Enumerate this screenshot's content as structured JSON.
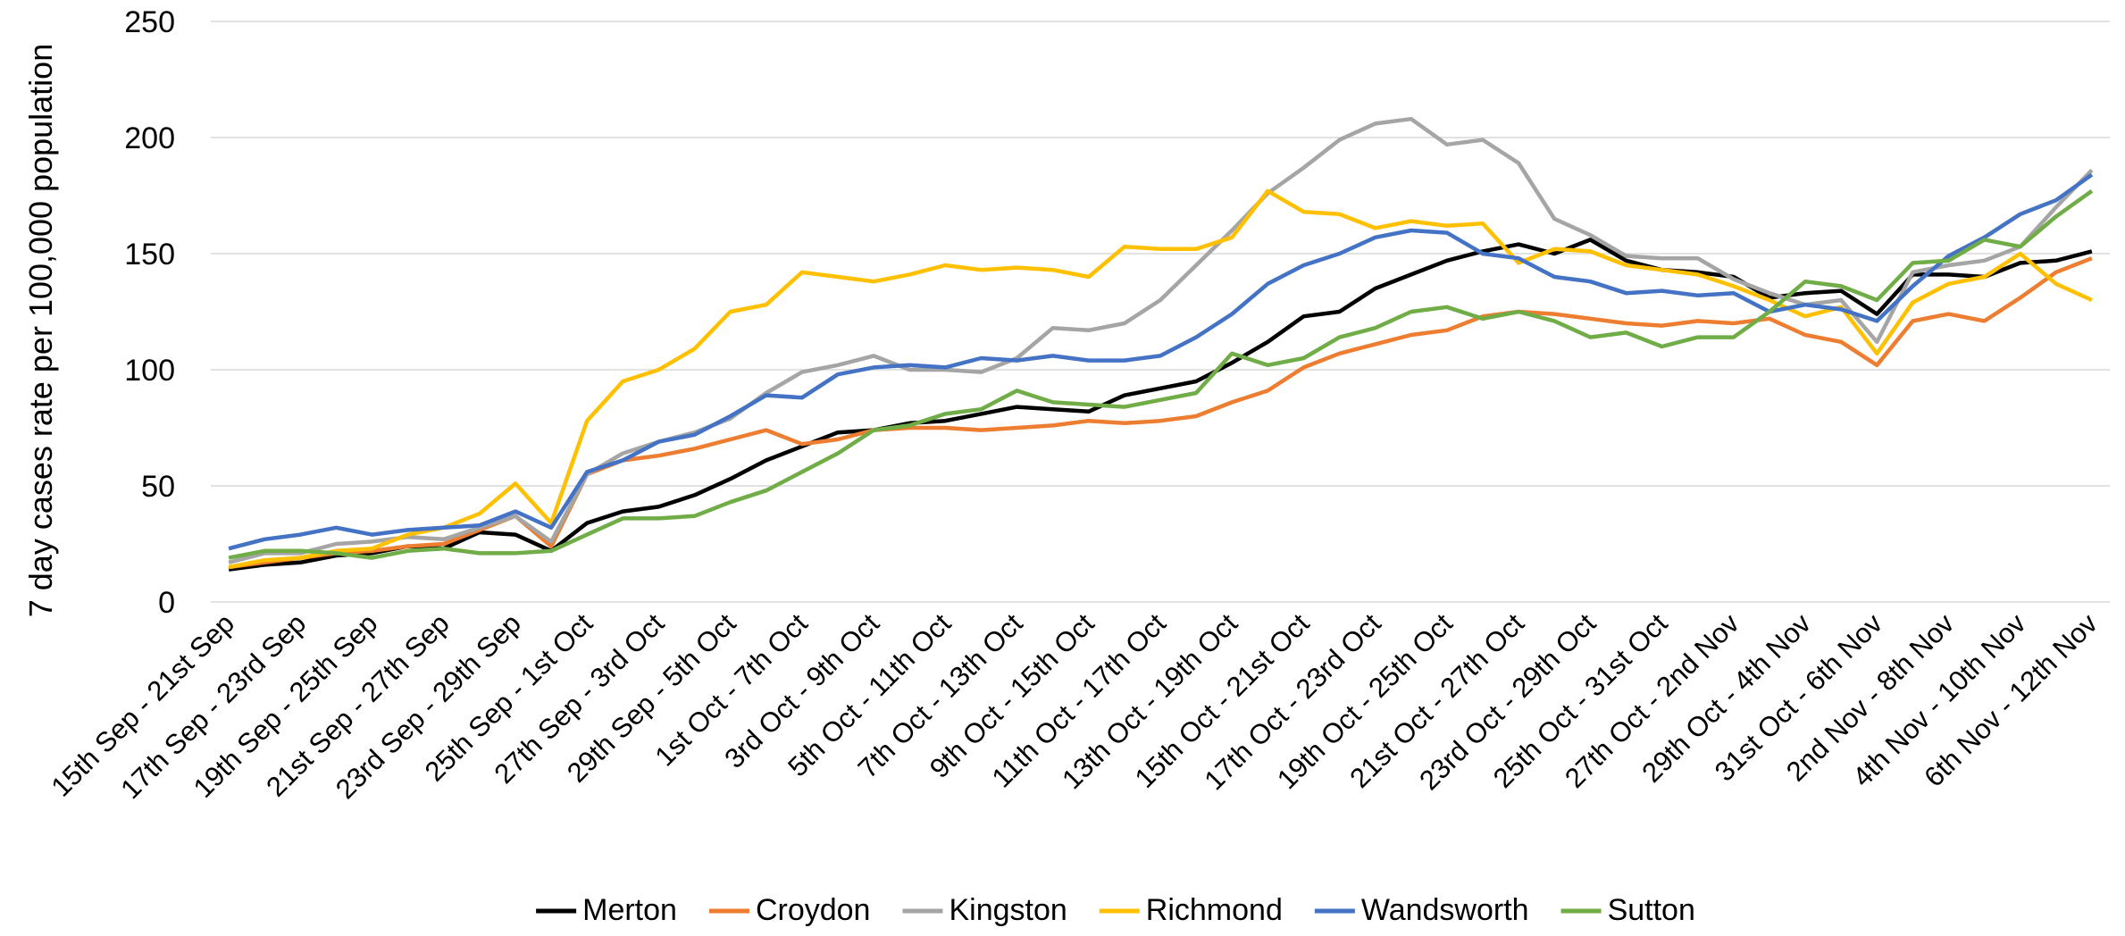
{
  "chart_data": {
    "type": "line",
    "y_label": "7 day cases rate per 100,000 population",
    "categories": [
      "15th Sep - 21st Sep",
      null,
      "17th Sep - 23rd Sep",
      null,
      "19th Sep - 25th Sep",
      null,
      "21st Sep - 27th Sep",
      null,
      "23rd Sep - 29th Sep",
      null,
      "25th Sep - 1st Oct",
      null,
      "27th Sep - 3rd Oct",
      null,
      "29th Sep - 5th Oct",
      null,
      "1st Oct - 7th Oct",
      null,
      "3rd Oct - 9th Oct",
      null,
      "5th Oct - 11th Oct",
      null,
      "7th Oct - 13th Oct",
      null,
      "9th Oct - 15th Oct",
      null,
      "11th Oct - 17th Oct",
      null,
      "13th Oct - 19th Oct",
      null,
      "15th Oct - 21st Oct",
      null,
      "17th Oct - 23rd Oct",
      null,
      "19th Oct - 25th Oct",
      null,
      "21st Oct - 27th Oct",
      null,
      "23rd Oct - 29th Oct",
      null,
      "25th Oct - 31st Oct",
      null,
      "27th Oct - 2nd Nov",
      null,
      "29th Oct - 4th Nov",
      null,
      "31st Oct - 6th Nov",
      null,
      "2nd Nov - 8th Nov",
      null,
      "4th Nov - 10th Nov",
      null,
      "6th Nov - 12th Nov"
    ],
    "series": [
      {
        "name": "Merton",
        "color": "#000000",
        "values": [
          14,
          16,
          17,
          20,
          21,
          24,
          23,
          30,
          29,
          22,
          34,
          39,
          41,
          46,
          53,
          61,
          67,
          73,
          74,
          77,
          78,
          81,
          84,
          83,
          82,
          89,
          92,
          95,
          103,
          112,
          123,
          125,
          135,
          141,
          147,
          151,
          154,
          150,
          156,
          147,
          143,
          142,
          140,
          131,
          133,
          134,
          124,
          141,
          141,
          140,
          146,
          147,
          151
        ]
      },
      {
        "name": "Croydon",
        "color": "#ed7d31",
        "values": [
          15,
          17,
          19,
          21,
          22,
          24,
          25,
          31,
          37,
          24,
          55,
          61,
          63,
          66,
          70,
          74,
          68,
          70,
          74,
          75,
          75,
          74,
          75,
          76,
          78,
          77,
          78,
          80,
          86,
          91,
          101,
          107,
          111,
          115,
          117,
          123,
          125,
          124,
          122,
          120,
          119,
          121,
          120,
          122,
          115,
          112,
          102,
          121,
          124,
          121,
          131,
          142,
          148
        ]
      },
      {
        "name": "Kingston",
        "color": "#a5a5a5",
        "values": [
          17,
          21,
          21,
          25,
          26,
          28,
          27,
          32,
          37,
          26,
          55,
          64,
          69,
          73,
          79,
          90,
          99,
          102,
          106,
          100,
          100,
          99,
          105,
          118,
          117,
          120,
          130,
          145,
          160,
          176,
          187,
          199,
          206,
          208,
          197,
          199,
          189,
          165,
          158,
          149,
          148,
          148,
          139,
          133,
          128,
          130,
          112,
          142,
          145,
          147,
          153,
          170,
          186
        ]
      },
      {
        "name": "Richmond",
        "color": "#ffc000",
        "values": [
          15,
          18,
          19,
          22,
          23,
          29,
          32,
          38,
          51,
          34,
          78,
          95,
          100,
          109,
          125,
          128,
          142,
          140,
          138,
          141,
          145,
          143,
          144,
          143,
          140,
          153,
          152,
          152,
          157,
          177,
          168,
          167,
          161,
          164,
          162,
          163,
          146,
          152,
          151,
          145,
          143,
          141,
          136,
          130,
          123,
          127,
          107,
          129,
          137,
          140,
          150,
          137,
          130
        ]
      },
      {
        "name": "Wandsworth",
        "color": "#4472c4",
        "values": [
          23,
          27,
          29,
          32,
          29,
          31,
          32,
          33,
          39,
          32,
          56,
          61,
          69,
          72,
          80,
          89,
          88,
          98,
          101,
          102,
          101,
          105,
          104,
          106,
          104,
          104,
          106,
          114,
          124,
          137,
          145,
          150,
          157,
          160,
          159,
          150,
          148,
          140,
          138,
          133,
          134,
          132,
          133,
          125,
          128,
          126,
          121,
          136,
          149,
          157,
          167,
          173,
          184
        ]
      },
      {
        "name": "Sutton",
        "color": "#70ad47",
        "values": [
          19,
          22,
          22,
          21,
          19,
          22,
          23,
          21,
          21,
          22,
          29,
          36,
          36,
          37,
          43,
          48,
          56,
          64,
          74,
          76,
          81,
          83,
          91,
          86,
          85,
          84,
          87,
          90,
          107,
          102,
          105,
          114,
          118,
          125,
          127,
          122,
          125,
          121,
          114,
          116,
          110,
          114,
          114,
          125,
          138,
          136,
          130,
          146,
          147,
          156,
          153,
          166,
          177
        ]
      }
    ],
    "ylim": [
      0,
      250
    ],
    "yticks": [
      0,
      50,
      100,
      150,
      200,
      250
    ],
    "grid": true,
    "legend": "bottom"
  }
}
